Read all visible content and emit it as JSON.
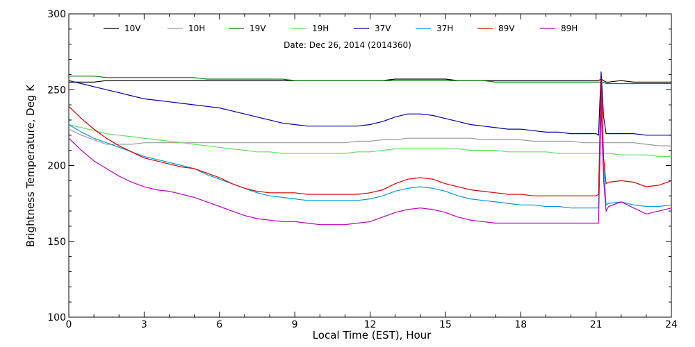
{
  "chart_data": {
    "type": "line",
    "title": "Date: Dec 26, 2014 (2014360)",
    "xlabel": "Local Time (EST), Hour",
    "ylabel": "Brightness Temperature, Deg K",
    "xlim": [
      0,
      24
    ],
    "ylim": [
      100,
      300
    ],
    "xticks": [
      "0",
      "3",
      "6",
      "9",
      "12",
      "15",
      "18",
      "21",
      "24"
    ],
    "yticks": [
      "100",
      "150",
      "200",
      "250",
      "300"
    ],
    "grid": false,
    "legend_position": "top",
    "x": [
      0,
      0.5,
      1,
      1.5,
      2,
      2.5,
      3,
      3.5,
      4,
      4.5,
      5,
      5.5,
      6,
      6.5,
      7,
      7.5,
      8,
      8.5,
      9,
      9.5,
      10,
      10.5,
      11,
      11.5,
      12,
      12.5,
      13,
      13.5,
      14,
      14.5,
      15,
      15.5,
      16,
      16.5,
      17,
      17.5,
      18,
      18.5,
      19,
      19.5,
      20,
      20.5,
      21,
      21.1,
      21.2,
      21.3,
      21.4,
      21.5,
      22,
      22.5,
      23,
      23.5,
      24
    ],
    "series": [
      {
        "name": "10V",
        "color": "#000000",
        "values": [
          255,
          255,
          255,
          256,
          256,
          256,
          256,
          256,
          256,
          256,
          256,
          256,
          256,
          256,
          256,
          256,
          256,
          256,
          256,
          256,
          256,
          256,
          256,
          256,
          256,
          256,
          257,
          257,
          257,
          257,
          257,
          256,
          256,
          256,
          256,
          256,
          256,
          256,
          256,
          256,
          256,
          256,
          256,
          256,
          257,
          256,
          255,
          255,
          256,
          255,
          255,
          255,
          255
        ]
      },
      {
        "name": "10H",
        "color": "#999999",
        "values": [
          224,
          220,
          217,
          214,
          214,
          214,
          215,
          215,
          215,
          215,
          215,
          215,
          215,
          215,
          215,
          215,
          215,
          215,
          215,
          215,
          215,
          215,
          215,
          216,
          216,
          217,
          217,
          218,
          218,
          218,
          218,
          218,
          218,
          217,
          217,
          217,
          217,
          216,
          216,
          216,
          216,
          215,
          215,
          215,
          215,
          215,
          215,
          215,
          215,
          215,
          214,
          213,
          213
        ]
      },
      {
        "name": "19V",
        "color": "#008000",
        "values": [
          259,
          259,
          259,
          258,
          258,
          258,
          258,
          258,
          258,
          258,
          258,
          257,
          257,
          257,
          257,
          257,
          257,
          257,
          256,
          256,
          256,
          256,
          256,
          256,
          256,
          256,
          256,
          256,
          256,
          256,
          256,
          256,
          256,
          256,
          255,
          255,
          255,
          255,
          255,
          255,
          255,
          255,
          255,
          255,
          255,
          255,
          254,
          254,
          254,
          254,
          254,
          254,
          254
        ]
      },
      {
        "name": "19H",
        "color": "#66dd66",
        "values": [
          227,
          225,
          223,
          221,
          220,
          219,
          218,
          217,
          216,
          215,
          214,
          213,
          212,
          211,
          210,
          209,
          209,
          208,
          208,
          208,
          208,
          208,
          208,
          209,
          209,
          210,
          211,
          211,
          211,
          211,
          211,
          211,
          210,
          210,
          210,
          209,
          209,
          209,
          209,
          208,
          208,
          208,
          208,
          208,
          208,
          208,
          208,
          208,
          207,
          207,
          207,
          206,
          206
        ]
      },
      {
        "name": "37V",
        "color": "#0000aa",
        "values": [
          256,
          254,
          252,
          250,
          248,
          246,
          244,
          243,
          242,
          241,
          240,
          239,
          238,
          236,
          234,
          232,
          230,
          228,
          227,
          226,
          226,
          226,
          226,
          226,
          227,
          229,
          232,
          234,
          234,
          233,
          231,
          229,
          227,
          226,
          225,
          224,
          224,
          223,
          222,
          222,
          221,
          221,
          221,
          220,
          262,
          232,
          221,
          221,
          221,
          221,
          220,
          220,
          220
        ]
      },
      {
        "name": "37H",
        "color": "#0099dd",
        "values": [
          227,
          222,
          218,
          215,
          212,
          209,
          206,
          204,
          202,
          200,
          198,
          194,
          191,
          188,
          185,
          182,
          180,
          179,
          178,
          177,
          177,
          177,
          177,
          177,
          178,
          180,
          183,
          185,
          186,
          185,
          183,
          180,
          178,
          177,
          176,
          175,
          174,
          174,
          173,
          173,
          172,
          172,
          172,
          172,
          248,
          200,
          174,
          175,
          176,
          174,
          173,
          173,
          174
        ]
      },
      {
        "name": "89V",
        "color": "#dd0000",
        "values": [
          239,
          231,
          224,
          218,
          213,
          209,
          205,
          203,
          201,
          199,
          198,
          195,
          192,
          188,
          185,
          183,
          182,
          182,
          182,
          181,
          181,
          181,
          181,
          181,
          182,
          184,
          188,
          191,
          192,
          191,
          188,
          186,
          184,
          183,
          182,
          181,
          181,
          180,
          180,
          180,
          180,
          180,
          180,
          181,
          258,
          205,
          188,
          189,
          190,
          189,
          186,
          187,
          190
        ]
      },
      {
        "name": "89H",
        "color": "#bb00bb",
        "values": [
          218,
          210,
          203,
          198,
          193,
          189,
          186,
          184,
          183,
          181,
          179,
          176,
          173,
          170,
          167,
          165,
          164,
          163,
          163,
          162,
          161,
          161,
          161,
          162,
          163,
          166,
          169,
          171,
          172,
          171,
          169,
          166,
          164,
          163,
          162,
          162,
          162,
          162,
          162,
          162,
          162,
          162,
          162,
          162,
          240,
          190,
          170,
          173,
          176,
          172,
          168,
          170,
          172
        ]
      }
    ]
  }
}
